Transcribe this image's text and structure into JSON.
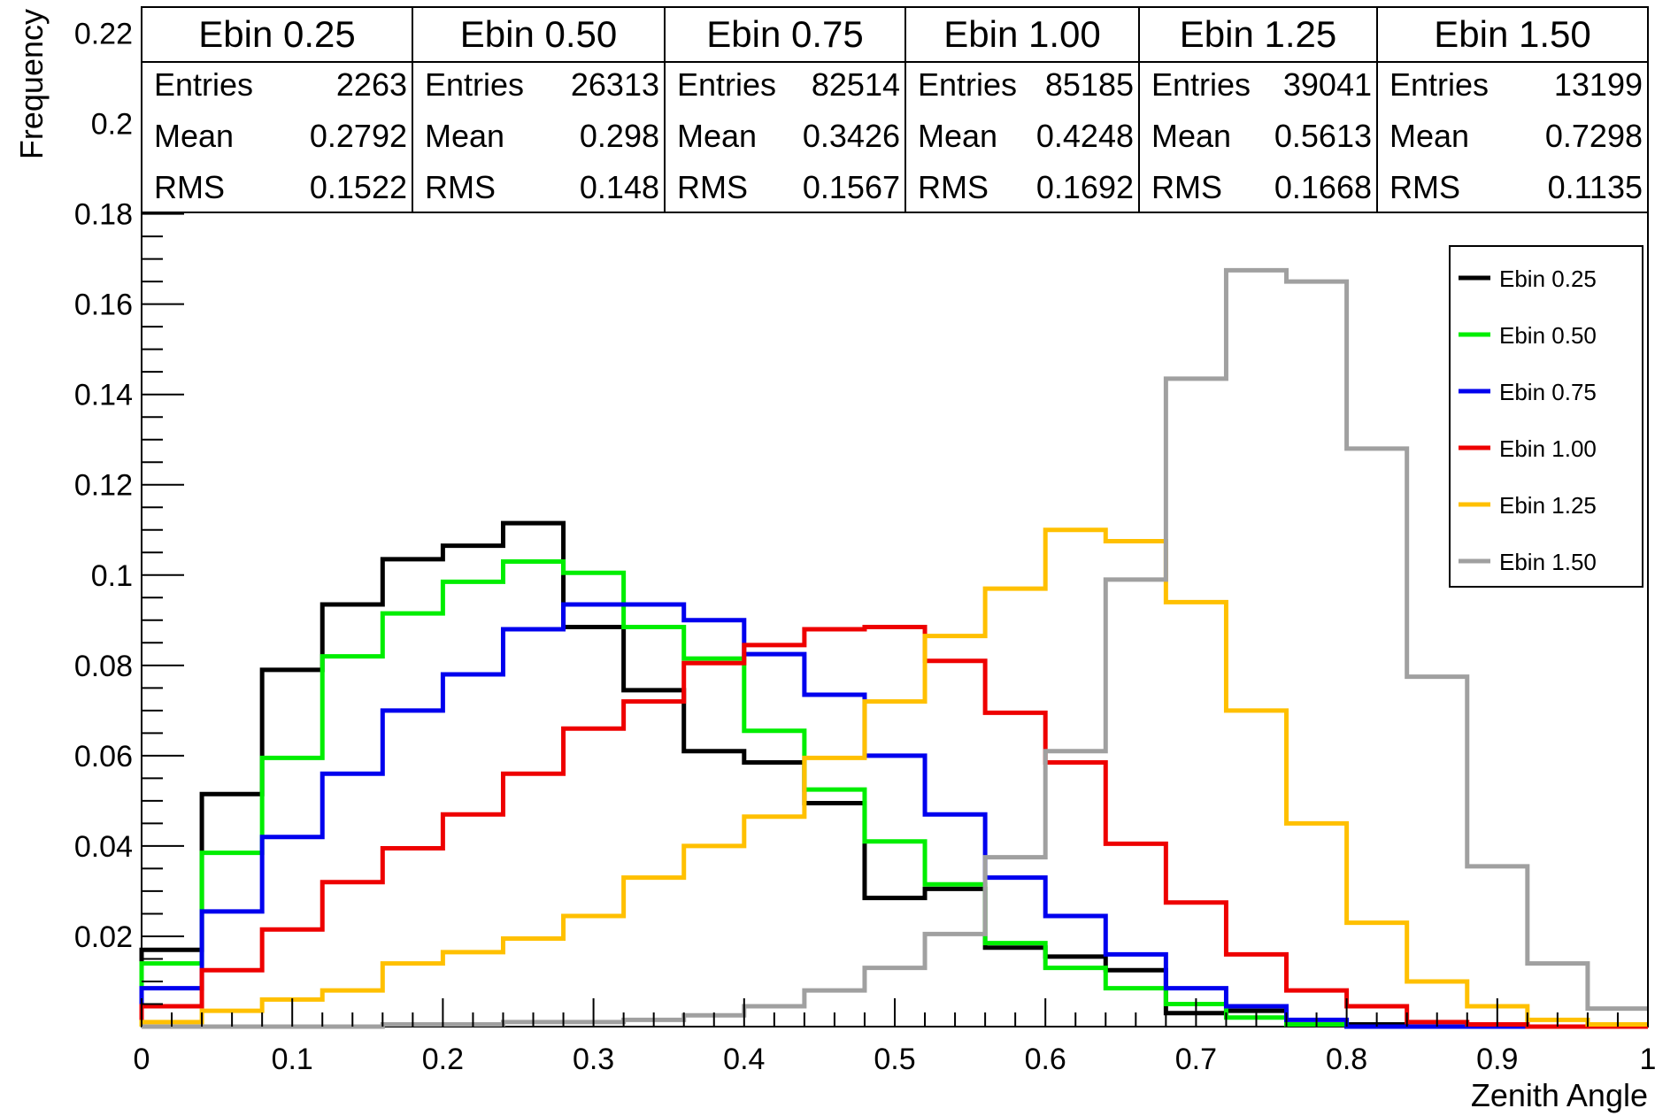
{
  "chart_data": {
    "type": "line",
    "xlabel": "Zenith Angle",
    "ylabel": "Frequency",
    "xlim": [
      0,
      1
    ],
    "ylim": [
      0,
      0.225
    ],
    "x_ticks": [
      "0",
      "0.1",
      "0.2",
      "0.3",
      "0.4",
      "0.5",
      "0.6",
      "0.7",
      "0.8",
      "0.9",
      "1"
    ],
    "y_ticks": [
      "0.02",
      "0.04",
      "0.06",
      "0.08",
      "0.1",
      "0.12",
      "0.14",
      "0.16",
      "0.18",
      "0.2",
      "0.22"
    ],
    "bin_width": 0.04,
    "legend_position": "top-right",
    "grid": false,
    "stats_labels": {
      "entries": "Entries",
      "mean": "Mean",
      "rms": "RMS"
    },
    "series": [
      {
        "name": "Ebin 0.25",
        "color": "#000000",
        "entries": "2263",
        "mean": "0.2792",
        "rms": "0.1522",
        "values": [
          0.017,
          0.0515,
          0.079,
          0.0935,
          0.1035,
          0.1065,
          0.1115,
          0.0885,
          0.0745,
          0.061,
          0.0585,
          0.0495,
          0.0285,
          0.0305,
          0.0175,
          0.0155,
          0.0125,
          0.003,
          0.0035,
          0.0005,
          0.0005,
          0.0,
          0.0,
          0.0,
          0.0
        ]
      },
      {
        "name": "Ebin 0.50",
        "color": "#00ee00",
        "entries": "26313",
        "mean": "0.298",
        "rms": "0.148",
        "values": [
          0.014,
          0.0385,
          0.0595,
          0.082,
          0.0915,
          0.0985,
          0.103,
          0.1005,
          0.0885,
          0.0815,
          0.0655,
          0.0525,
          0.041,
          0.0315,
          0.0185,
          0.013,
          0.0085,
          0.005,
          0.002,
          0.0005,
          0.0,
          0.0,
          0.0,
          0.0,
          0.0
        ]
      },
      {
        "name": "Ebin 0.75",
        "color": "#0000ee",
        "entries": "82514",
        "mean": "0.3426",
        "rms": "0.1567",
        "values": [
          0.0085,
          0.0255,
          0.042,
          0.056,
          0.07,
          0.078,
          0.088,
          0.0935,
          0.0935,
          0.09,
          0.0825,
          0.0735,
          0.06,
          0.047,
          0.033,
          0.0245,
          0.016,
          0.0085,
          0.0045,
          0.0015,
          0.0,
          0.0,
          0.0,
          0.0,
          0.0
        ]
      },
      {
        "name": "Ebin 1.00",
        "color": "#ee0000",
        "entries": "85185",
        "mean": "0.4248",
        "rms": "0.1692",
        "values": [
          0.0045,
          0.0125,
          0.0215,
          0.032,
          0.0395,
          0.047,
          0.056,
          0.066,
          0.072,
          0.0805,
          0.0845,
          0.088,
          0.0885,
          0.081,
          0.0695,
          0.0585,
          0.0405,
          0.0275,
          0.016,
          0.008,
          0.0045,
          0.001,
          0.0005,
          0.0,
          0.0
        ]
      },
      {
        "name": "Ebin 1.25",
        "color": "#ffc000",
        "entries": "39041",
        "mean": "0.5613",
        "rms": "0.1668",
        "values": [
          0.001,
          0.0035,
          0.006,
          0.008,
          0.014,
          0.0165,
          0.0195,
          0.0245,
          0.033,
          0.04,
          0.0465,
          0.0595,
          0.072,
          0.0865,
          0.097,
          0.11,
          0.1075,
          0.094,
          0.07,
          0.045,
          0.023,
          0.01,
          0.0045,
          0.0015,
          0.0005
        ]
      },
      {
        "name": "Ebin 1.50",
        "color": "#a0a0a0",
        "entries": "13199",
        "mean": "0.7298",
        "rms": "0.1135",
        "values": [
          0.0,
          0.0,
          0.0,
          0.0,
          0.0005,
          0.0005,
          0.001,
          0.001,
          0.0015,
          0.0025,
          0.0045,
          0.008,
          0.013,
          0.0205,
          0.0375,
          0.061,
          0.099,
          0.1435,
          0.1675,
          0.165,
          0.128,
          0.0775,
          0.0355,
          0.014,
          0.004
        ]
      }
    ]
  }
}
